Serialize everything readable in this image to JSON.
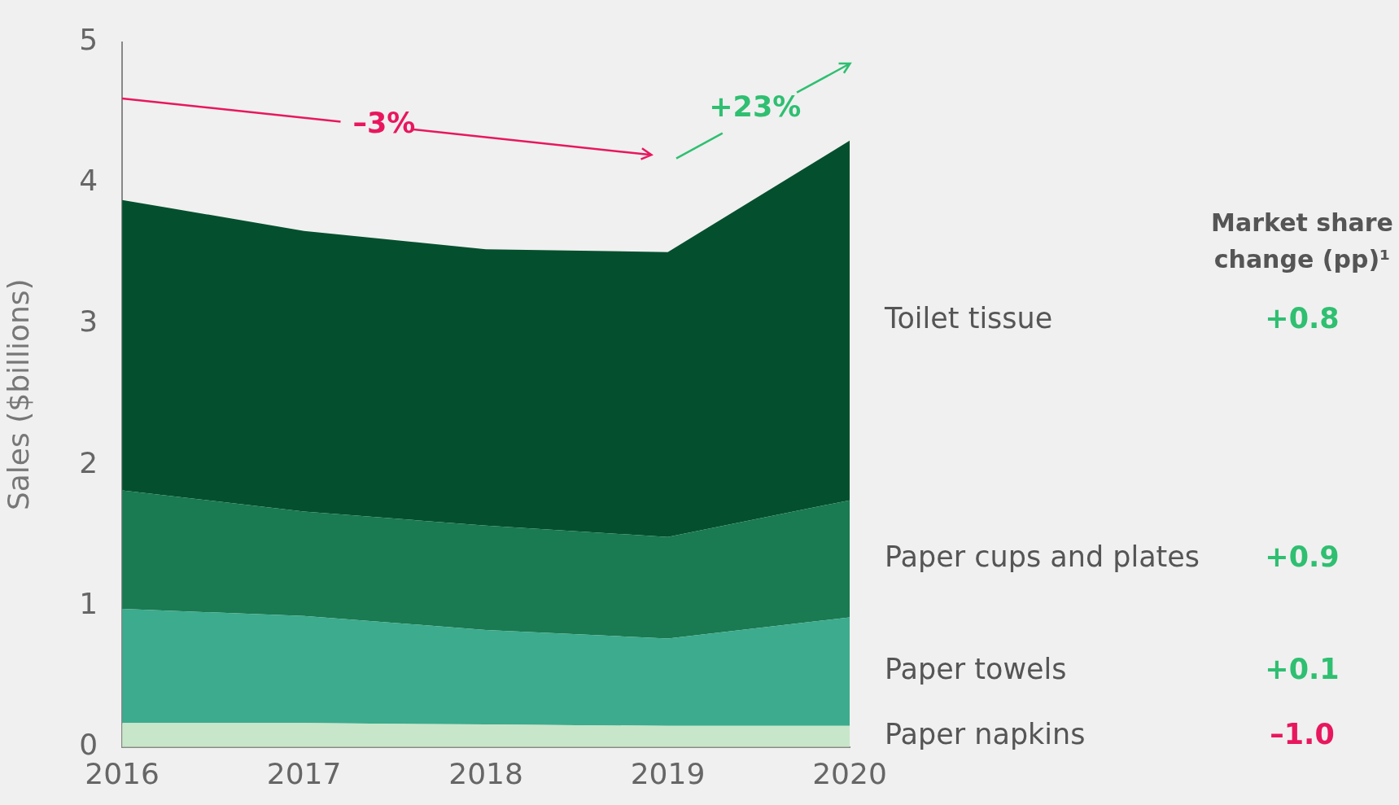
{
  "chart_data": {
    "type": "area",
    "categories": [
      "2016",
      "2017",
      "2018",
      "2019",
      "2020"
    ],
    "ylabel": "Sales ($billions)",
    "ylim": [
      0,
      5
    ],
    "yticks": [
      0,
      1,
      2,
      3,
      4,
      5
    ],
    "stacked": true,
    "grid": false,
    "legend": "right",
    "legend_title": "Market share change (pp)¹",
    "series": [
      {
        "name": "Paper napkins",
        "color": "#c8e6c9",
        "values": [
          0.17,
          0.17,
          0.16,
          0.15,
          0.15
        ]
      },
      {
        "name": "Paper towels",
        "color": "#3dab8d",
        "values": [
          0.81,
          0.76,
          0.67,
          0.62,
          0.77
        ]
      },
      {
        "name": "Paper cups and plates",
        "color": "#1a7a52",
        "values": [
          0.84,
          0.74,
          0.74,
          0.72,
          0.83
        ]
      },
      {
        "name": "Toilet tissue",
        "color": "#04502e",
        "values": [
          2.06,
          1.99,
          1.96,
          2.02,
          2.55
        ]
      }
    ],
    "annotations": [
      "–1.0",
      "+0.1",
      "+0.9",
      "+0.8",
      "–3%",
      "+23%"
    ]
  }
}
